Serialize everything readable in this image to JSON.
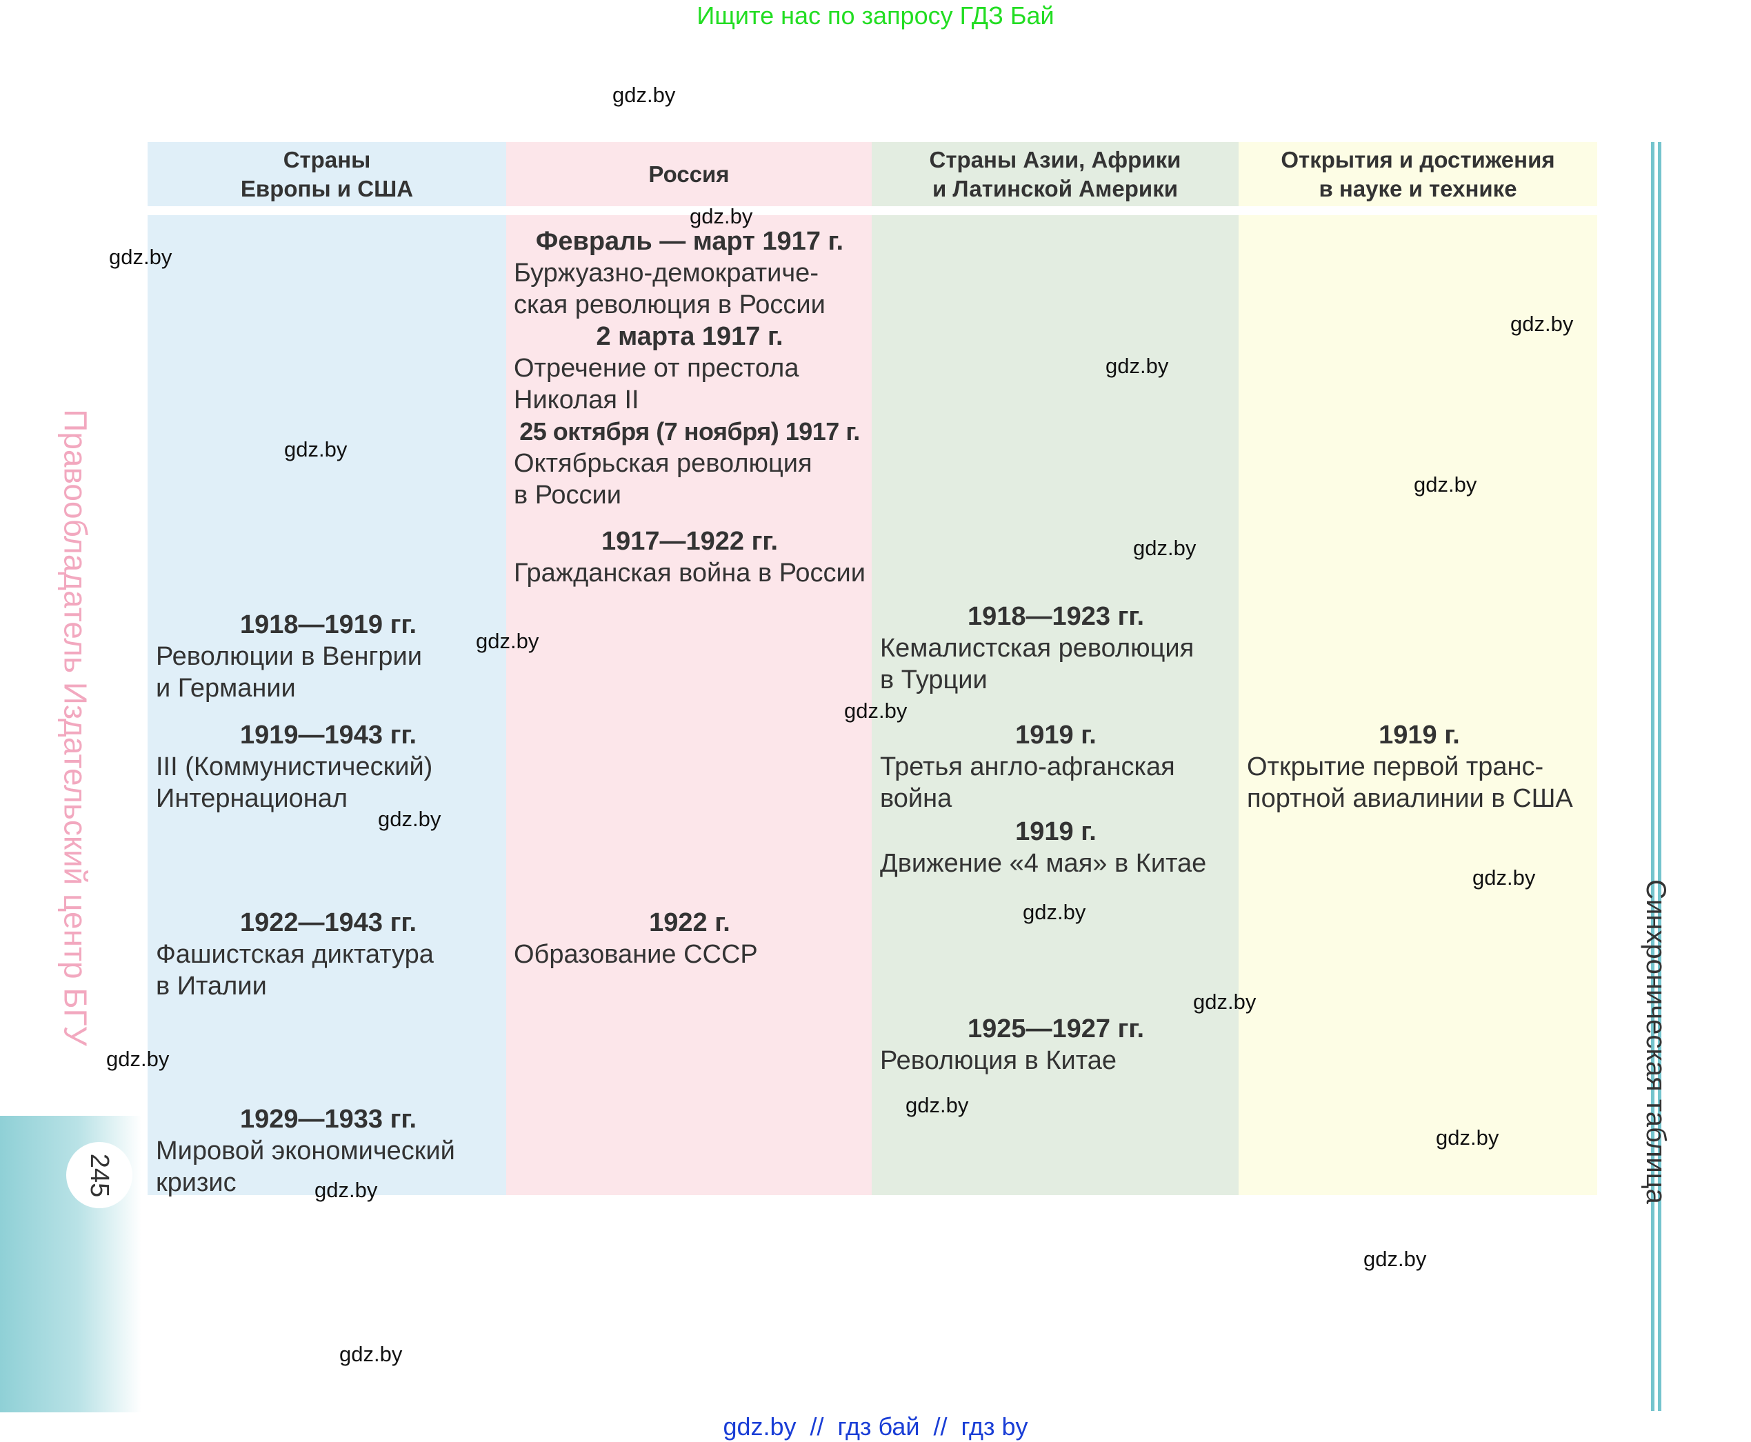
{
  "banner_top": "Ищите нас по запросу ГДЗ Бай",
  "banner_bottom": "gdz.by  //  гдз бай  //  гдз by",
  "watermark": "gdz.by",
  "page_number": "245",
  "side_left_text": "Правообладатель Издательский центр БГУ",
  "side_right_text": "Синхроническая таблица",
  "columns": [
    {
      "header": "Страны\nЕвропы и США",
      "color": "#e0eff8",
      "entries": [
        {
          "year": "1918—1919 гг.",
          "text": "Революции в Венгрии\nи Германии"
        },
        {
          "year": "1919—1943 гг.",
          "text": "III (Коммунистический)\nИнтернационал"
        },
        {
          "year": "1922—1943 гг.",
          "text": "Фашистская диктатура\nв Италии"
        },
        {
          "year": "1929—1933 гг.",
          "text": "Мировой экономический\nкризис"
        }
      ]
    },
    {
      "header": "Россия",
      "color": "#fce6ea",
      "entries": [
        {
          "year": "Февраль — март 1917 г.",
          "text": "Буржуазно-демократиче-\nская революция в России"
        },
        {
          "year": "2 марта 1917 г.",
          "text": "Отречение от престола\nНиколая II"
        },
        {
          "year": "25 октября (7 ноября) 1917 г.",
          "text": "Октябрьская революция\nв России"
        },
        {
          "year": "1917—1922 гг.",
          "text": "Гражданская война в России"
        },
        {
          "year": "1922 г.",
          "text": "Образование СССР"
        }
      ]
    },
    {
      "header": "Страны Азии, Африки\nи Латинской Америки",
      "color": "#e3ede1",
      "entries": [
        {
          "year": "1918—1923 гг.",
          "text": "Кемалистская революция\nв Турции"
        },
        {
          "year": "1919 г.",
          "text": "Третья англо-афганская\nвойна"
        },
        {
          "year": "1919 г.",
          "text": "Движение «4 мая» в Китае"
        },
        {
          "year": "1925—1927 гг.",
          "text": "Революция в Китае"
        }
      ]
    },
    {
      "header": "Открытия и достижения\nв науке и технике",
      "color": "#fdfde5",
      "entries": [
        {
          "year": "1919 г.",
          "text": "Открытие первой транс-\nпортной авиалинии в США"
        }
      ]
    }
  ]
}
